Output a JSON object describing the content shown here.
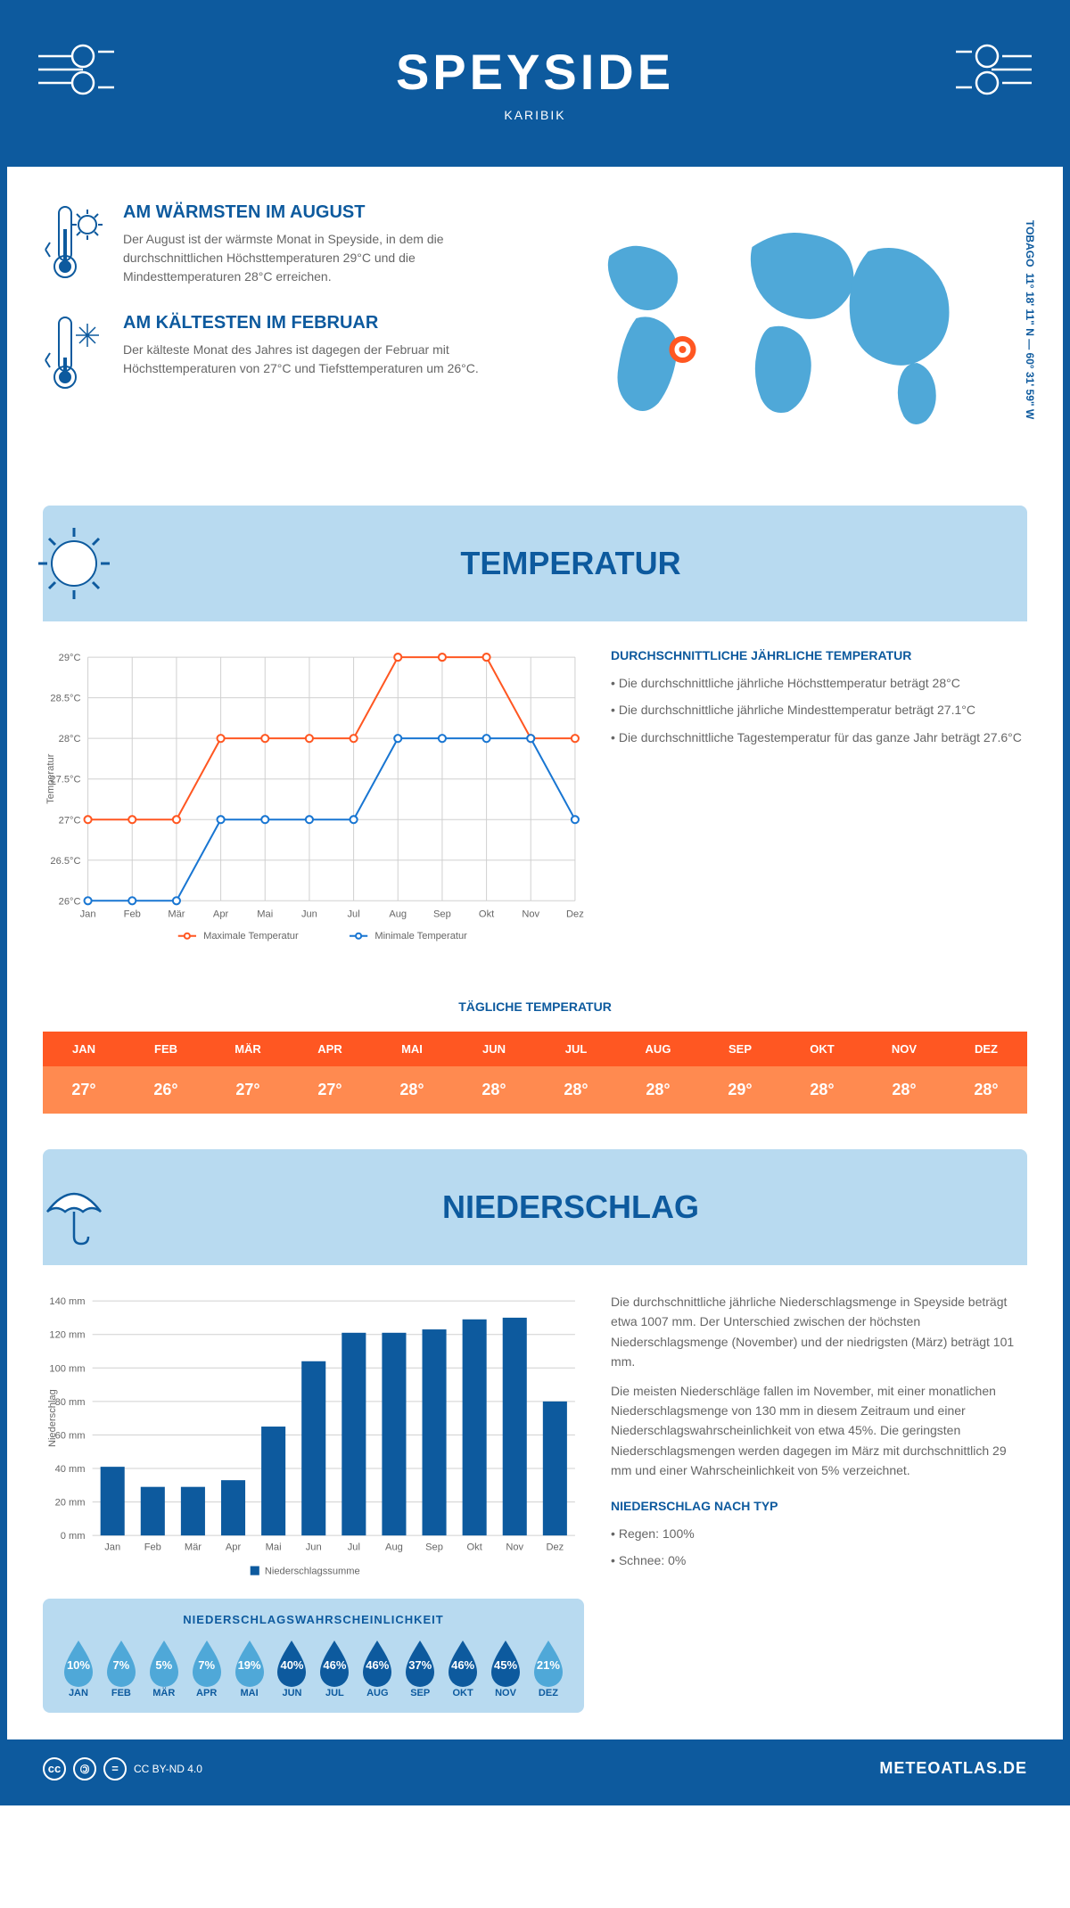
{
  "header": {
    "title": "SPEYSIDE",
    "subtitle": "KARIBIK"
  },
  "coords": {
    "text": "11° 18' 11\" N — 60° 31' 59\" W",
    "region": "TOBAGO"
  },
  "warmest": {
    "title": "AM WÄRMSTEN IM AUGUST",
    "text": "Der August ist der wärmste Monat in Speyside, in dem die durchschnittlichen Höchsttemperaturen 29°C und die Mindesttemperaturen 28°C erreichen."
  },
  "coldest": {
    "title": "AM KÄLTESTEN IM FEBRUAR",
    "text": "Der kälteste Monat des Jahres ist dagegen der Februar mit Höchsttemperaturen von 27°C und Tiefsttemperaturen um 26°C."
  },
  "temp_section": {
    "title": "TEMPERATUR"
  },
  "temp_chart": {
    "type": "line",
    "months": [
      "Jan",
      "Feb",
      "Mär",
      "Apr",
      "Mai",
      "Jun",
      "Jul",
      "Aug",
      "Sep",
      "Okt",
      "Nov",
      "Dez"
    ],
    "max_values": [
      27,
      27,
      27,
      28,
      28,
      28,
      28,
      29,
      29,
      29,
      28,
      28
    ],
    "min_values": [
      26,
      26,
      26,
      27,
      27,
      27,
      27,
      28,
      28,
      28,
      28,
      27
    ],
    "max_color": "#ff5722",
    "min_color": "#1976d2",
    "ylabel": "Temperatur",
    "ylim": [
      26,
      29
    ],
    "ytick_step": 0.5,
    "grid_color": "#d0d0d0",
    "background_color": "#ffffff",
    "legend": {
      "max": "Maximale Temperatur",
      "min": "Minimale Temperatur"
    },
    "line_width": 2,
    "marker_size": 4
  },
  "temp_info": {
    "title": "DURCHSCHNITTLICHE JÄHRLICHE TEMPERATUR",
    "items": [
      "• Die durchschnittliche jährliche Höchsttemperatur beträgt 28°C",
      "• Die durchschnittliche jährliche Mindesttemperatur beträgt 27.1°C",
      "• Die durchschnittliche Tagestemperatur für das ganze Jahr beträgt 27.6°C"
    ]
  },
  "daily": {
    "title": "TÄGLICHE TEMPERATUR",
    "months": [
      "JAN",
      "FEB",
      "MÄR",
      "APR",
      "MAI",
      "JUN",
      "JUL",
      "AUG",
      "SEP",
      "OKT",
      "NOV",
      "DEZ"
    ],
    "values": [
      "27°",
      "26°",
      "27°",
      "27°",
      "28°",
      "28°",
      "28°",
      "28°",
      "29°",
      "28°",
      "28°",
      "28°"
    ],
    "header_bg": "#ff5722",
    "value_bg": "#ff8a50"
  },
  "precip_section": {
    "title": "NIEDERSCHLAG"
  },
  "precip_chart": {
    "type": "bar",
    "months": [
      "Jan",
      "Feb",
      "Mär",
      "Apr",
      "Mai",
      "Jun",
      "Jul",
      "Aug",
      "Sep",
      "Okt",
      "Nov",
      "Dez"
    ],
    "values": [
      41,
      29,
      29,
      33,
      65,
      104,
      121,
      121,
      123,
      129,
      130,
      80
    ],
    "bar_color": "#0d5a9e",
    "ylabel": "Niederschlag",
    "ylim": [
      0,
      140
    ],
    "ytick_step": 20,
    "grid_color": "#d0d0d0",
    "background_color": "#ffffff",
    "legend": "Niederschlagssumme",
    "bar_width": 0.6
  },
  "precip_info": {
    "p1": "Die durchschnittliche jährliche Niederschlagsmenge in Speyside beträgt etwa 1007 mm. Der Unterschied zwischen der höchsten Niederschlagsmenge (November) und der niedrigsten (März) beträgt 101 mm.",
    "p2": "Die meisten Niederschläge fallen im November, mit einer monatlichen Niederschlagsmenge von 130 mm in diesem Zeitraum und einer Niederschlagswahrscheinlichkeit von etwa 45%. Die geringsten Niederschlagsmengen werden dagegen im März mit durchschnittlich 29 mm und einer Wahrscheinlichkeit von 5% verzeichnet.",
    "type_title": "NIEDERSCHLAG NACH TYP",
    "types": [
      "• Regen: 100%",
      "• Schnee: 0%"
    ]
  },
  "prob": {
    "title": "NIEDERSCHLAGSWAHRSCHEINLICHKEIT",
    "months": [
      "JAN",
      "FEB",
      "MÄR",
      "APR",
      "MAI",
      "JUN",
      "JUL",
      "AUG",
      "SEP",
      "OKT",
      "NOV",
      "DEZ"
    ],
    "pct": [
      "10%",
      "7%",
      "5%",
      "7%",
      "19%",
      "40%",
      "46%",
      "46%",
      "37%",
      "46%",
      "45%",
      "21%"
    ],
    "pct_num": [
      10,
      7,
      5,
      7,
      19,
      40,
      46,
      46,
      37,
      46,
      45,
      21
    ],
    "low_color": "#4fa8d8",
    "high_color": "#0d5a9e",
    "threshold": 30
  },
  "footer": {
    "license": "CC BY-ND 4.0",
    "brand": "METEOATLAS.DE"
  }
}
